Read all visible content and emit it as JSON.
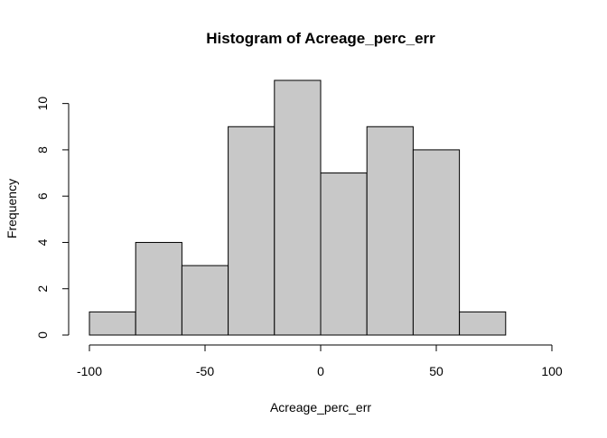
{
  "chart_data": {
    "type": "bar",
    "subtype": "histogram",
    "title": "Histogram of Acreage_perc_err",
    "xlabel": "Acreage_perc_err",
    "ylabel": "Frequency",
    "bins": [
      {
        "x0": -100,
        "x1": -80,
        "count": 1
      },
      {
        "x0": -80,
        "x1": -60,
        "count": 4
      },
      {
        "x0": -60,
        "x1": -40,
        "count": 3
      },
      {
        "x0": -40,
        "x1": -20,
        "count": 9
      },
      {
        "x0": -20,
        "x1": 0,
        "count": 11
      },
      {
        "x0": 0,
        "x1": 20,
        "count": 7
      },
      {
        "x0": 20,
        "x1": 40,
        "count": 9
      },
      {
        "x0": 40,
        "x1": 60,
        "count": 8
      },
      {
        "x0": 60,
        "x1": 80,
        "count": 1
      }
    ],
    "xticks": [
      -100,
      -50,
      0,
      50,
      100
    ],
    "xtick_labels": [
      "-100",
      "-50",
      "0",
      "50",
      "100"
    ],
    "yticks": [
      0,
      2,
      4,
      6,
      8,
      10
    ],
    "ytick_labels": [
      "0",
      "2",
      "4",
      "6",
      "8",
      "10"
    ],
    "xlim": [
      -100,
      100
    ],
    "ylim": [
      0,
      11
    ],
    "grid": false,
    "bar_color": "#c8c8c8",
    "edge_color": "#000000"
  }
}
